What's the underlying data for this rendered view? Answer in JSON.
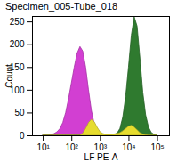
{
  "chart_data": {
    "type": "area",
    "title": "Specimen_005-Tube_018",
    "x_label": "LF PE-A",
    "y_label": "Count",
    "log": "x",
    "grid": false,
    "xlim": [
      4.2,
      262144
    ],
    "ylim": [
      0,
      262
    ],
    "xticks": [
      {
        "value": 10,
        "label": "10¹"
      },
      {
        "value": 100,
        "label": "10²"
      },
      {
        "value": 1000,
        "label": "10³"
      },
      {
        "value": 10000,
        "label": "10⁴"
      },
      {
        "value": 100000,
        "label": "10⁵"
      }
    ],
    "yticks": [
      0,
      50,
      100,
      150,
      200,
      250
    ],
    "x": [
      10,
      12.6,
      15.8,
      20,
      25.1,
      31.6,
      39.8,
      50.1,
      63.1,
      79.4,
      100,
      126,
      158,
      200,
      251,
      316,
      398,
      501,
      631,
      794,
      1000,
      1259,
      1585,
      1995,
      2512,
      3162,
      3981,
      5012,
      6310,
      7943,
      10000,
      12589,
      15849,
      19953,
      25119,
      31623,
      39811,
      50119,
      63096,
      79433,
      100000
    ],
    "series": [
      {
        "color": "#d23fd2",
        "values": [
          0,
          0,
          0,
          2,
          4,
          8,
          15,
          28,
          50,
          80,
          115,
          150,
          180,
          195,
          185,
          150,
          100,
          55,
          25,
          10,
          4,
          1,
          0,
          0,
          0,
          0,
          0,
          0,
          0,
          0,
          0,
          0,
          0,
          0,
          0,
          0,
          0,
          0,
          0,
          0,
          0
        ]
      },
      {
        "color": "#2f7a2f",
        "values": [
          0,
          0,
          0,
          0,
          0,
          0,
          0,
          0,
          0,
          0,
          0,
          0,
          0,
          0,
          0,
          0,
          0,
          0,
          0,
          0,
          0,
          0,
          0,
          0,
          0,
          2,
          5,
          15,
          40,
          85,
          150,
          220,
          260,
          240,
          170,
          95,
          45,
          18,
          6,
          2,
          0
        ]
      },
      {
        "color": "#e6dc2e",
        "values": [
          0,
          0,
          0,
          0,
          0,
          0,
          0,
          0,
          0,
          0,
          0,
          0,
          0,
          0,
          5,
          15,
          28,
          35,
          30,
          18,
          8,
          4,
          2,
          2,
          2,
          3,
          4,
          6,
          10,
          15,
          20,
          22,
          18,
          12,
          6,
          3,
          1,
          0,
          0,
          0,
          0
        ]
      }
    ]
  }
}
